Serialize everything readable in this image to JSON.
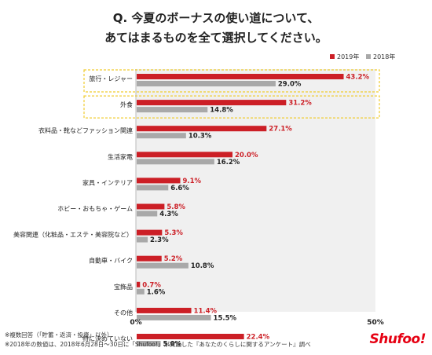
{
  "title_line1": "Q. 今夏のボーナスの使い道について、",
  "title_line2": "あてはまるものを全て選択してください。",
  "footnote1": "※複数回答（「貯蓄・返済・投資」以外）",
  "footnote2": "※2018年の数値は、2018年6月28日～30日に「Shufoo!」が実施した『あなたのくらしに関するアンケート』調べ",
  "brand": "Shufoo!",
  "chart_data": {
    "type": "bar",
    "orientation": "horizontal",
    "categories": [
      "旅行・レジャー",
      "外食",
      "衣料品・靴などファッション関連",
      "生活家電",
      "家具・インテリア",
      "ホビー・おもちゃ・ゲーム",
      "美容関連（化粧品・エステ・美容院など）",
      "自動車・バイク",
      "宝飾品",
      "その他",
      "特に決めていない"
    ],
    "series": [
      {
        "name": "2019年",
        "color": "#cc1f26",
        "values": [
          43.2,
          31.2,
          27.1,
          20.0,
          9.1,
          5.8,
          5.3,
          5.2,
          0.7,
          11.4,
          22.4
        ],
        "labels": [
          "43.2%",
          "31.2%",
          "27.1%",
          "20.0%",
          "9.1%",
          "5.8%",
          "5.3%",
          "5.2%",
          "0.7%",
          "11.4%",
          "22.4%"
        ]
      },
      {
        "name": "2018年",
        "color": "#a9a9a9",
        "values": [
          29.0,
          14.8,
          10.3,
          16.2,
          6.6,
          4.3,
          2.3,
          10.8,
          1.6,
          15.5,
          5.0
        ],
        "labels": [
          "29.0%",
          "14.8%",
          "10.3%",
          "16.2%",
          "6.6%",
          "4.3%",
          "2.3%",
          "10.8%",
          "1.6%",
          "15.5%",
          "5.0%"
        ]
      }
    ],
    "xlim": [
      0,
      50
    ],
    "x_tick_labels": [
      "0%",
      "50%"
    ],
    "highlighted_categories": [
      "旅行・レジャー",
      "外食"
    ],
    "highlight_color": "#f0cc30",
    "legend_position": "top-right",
    "plot_background": "#f0f0f0"
  }
}
